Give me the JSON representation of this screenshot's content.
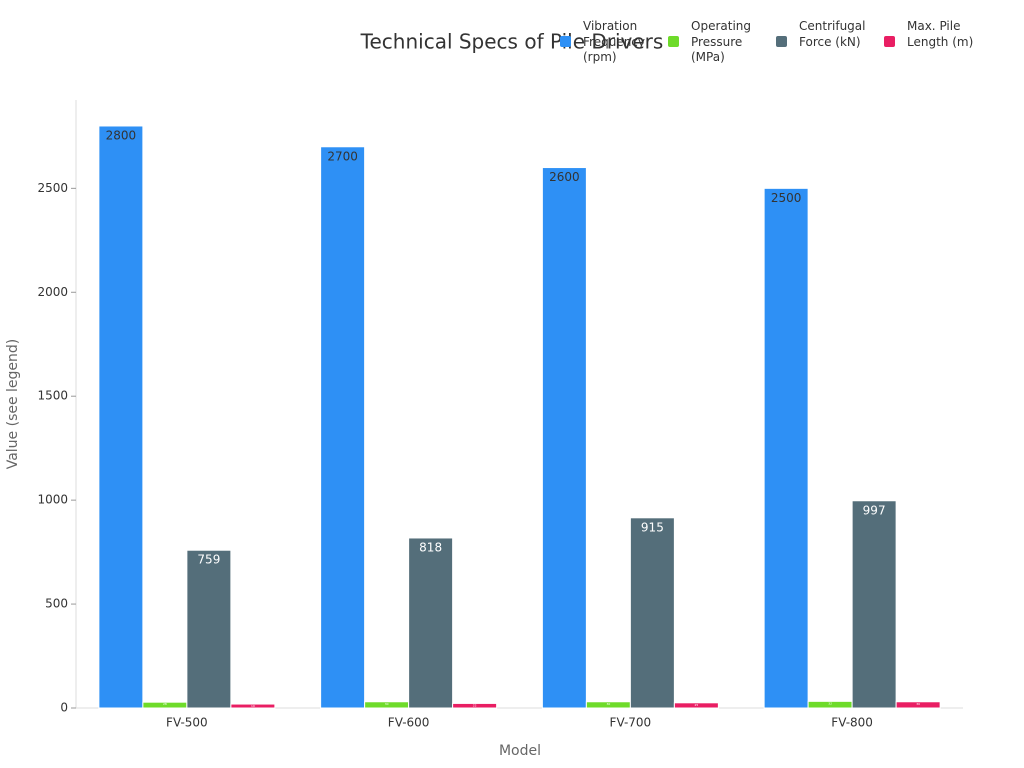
{
  "chart_data": {
    "type": "bar",
    "title": "Technical Specs of Pile Drivers",
    "x_label": "Model",
    "y_label": "Value (see legend)",
    "categories": [
      "FV-500",
      "FV-600",
      "FV-700",
      "FV-800"
    ],
    "series": [
      {
        "name": "Vibration Frequency (rpm)",
        "color": "#2e90f5",
        "values": [
          2800,
          2700,
          2600,
          2500
        ]
      },
      {
        "name": "Operating Pressure (MPa)",
        "color": "#6edb2a",
        "values": [
          28,
          30,
          30,
          32
        ]
      },
      {
        "name": "Centrifugal Force (kN)",
        "color": "#546e7a",
        "values": [
          759,
          818,
          915,
          997
        ]
      },
      {
        "name": "Max. Pile Length (m)",
        "color": "#e91e63",
        "values": [
          19,
          22,
          25,
          30
        ]
      }
    ],
    "ylim": [
      0,
      2925
    ],
    "yticks": [
      0,
      500,
      1000,
      1500,
      2000,
      2500
    ]
  }
}
